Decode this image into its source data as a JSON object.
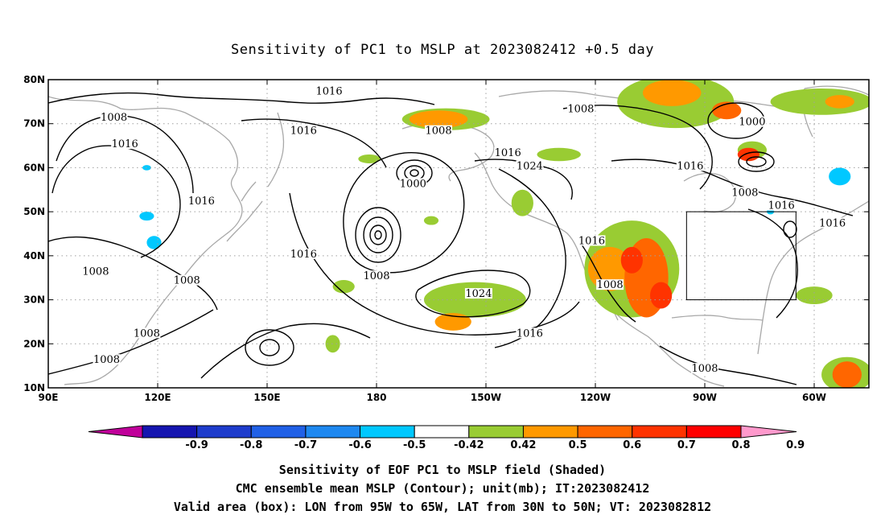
{
  "title": "Sensitivity of PC1 to MSLP at 2023082412 +0.5 day",
  "lon_ticks": [
    "90E",
    "120E",
    "150E",
    "180",
    "150W",
    "120W",
    "90W",
    "60W"
  ],
  "lat_ticks": [
    "80N",
    "70N",
    "60N",
    "50N",
    "40N",
    "30N",
    "20N",
    "10N"
  ],
  "map_extent": {
    "lon_min": 90,
    "lon_max": 315,
    "lat_min": 10,
    "lat_max": 80
  },
  "colorbar": {
    "labels": [
      "-0.9",
      "-0.8",
      "-0.7",
      "-0.6",
      "-0.5",
      "-0.42",
      "0.42",
      "0.5",
      "0.6",
      "0.7",
      "0.8",
      "0.9"
    ],
    "colors": [
      "#c0009a",
      "#1515b0",
      "#1e3ccc",
      "#2060e6",
      "#1e88f0",
      "#00c8ff",
      "#ffffff",
      "#99cc33",
      "#ff9900",
      "#ff6600",
      "#ff3300",
      "#ff0000",
      "#ff99cc"
    ]
  },
  "contour_labels": [
    {
      "text": "1016",
      "lon": 167,
      "lat": 77
    },
    {
      "text": "1008",
      "lon": 108,
      "lat": 71
    },
    {
      "text": "1016",
      "lon": 111,
      "lat": 65
    },
    {
      "text": "1016",
      "lon": 160,
      "lat": 68
    },
    {
      "text": "1008",
      "lon": 197,
      "lat": 68
    },
    {
      "text": "1016",
      "lon": 216,
      "lat": 63
    },
    {
      "text": "1024",
      "lon": 222,
      "lat": 60
    },
    {
      "text": "1000",
      "lon": 190,
      "lat": 56
    },
    {
      "text": "1016",
      "lon": 132,
      "lat": 52
    },
    {
      "text": "1016",
      "lon": 160,
      "lat": 40
    },
    {
      "text": "1008",
      "lon": 180,
      "lat": 35
    },
    {
      "text": "1008",
      "lon": 103,
      "lat": 36
    },
    {
      "text": "1008",
      "lon": 128,
      "lat": 34
    },
    {
      "text": "1024",
      "lon": 208,
      "lat": 31
    },
    {
      "text": "1016",
      "lon": 222,
      "lat": 22
    },
    {
      "text": "1008",
      "lon": 117,
      "lat": 22
    },
    {
      "text": "1008",
      "lon": 106,
      "lat": 16
    },
    {
      "text": "1008",
      "lon": 236,
      "lat": 73
    },
    {
      "text": "1000",
      "lon": 283,
      "lat": 70
    },
    {
      "text": "1016",
      "lon": 266,
      "lat": 60
    },
    {
      "text": "1008",
      "lon": 281,
      "lat": 54
    },
    {
      "text": "1016",
      "lon": 291,
      "lat": 51
    },
    {
      "text": "1016",
      "lon": 305,
      "lat": 47
    },
    {
      "text": "1016",
      "lon": 239,
      "lat": 43
    },
    {
      "text": "1008",
      "lon": 244,
      "lat": 33
    },
    {
      "text": "1008",
      "lon": 270,
      "lat": 14
    }
  ],
  "lows": [
    {
      "lon": 180,
      "lat": 44
    },
    {
      "lon": 190,
      "lat": 58
    },
    {
      "lon": 285,
      "lat": 61
    },
    {
      "lon": 282,
      "lat": 68
    }
  ],
  "positive_sensitivity_patches": [
    {
      "lon": 244,
      "lat": 37,
      "rx": 6,
      "ry": 5,
      "level": "0.6"
    },
    {
      "lon": 254,
      "lat": 35,
      "rx": 6,
      "ry": 9,
      "level": "0.7"
    },
    {
      "lon": 250,
      "lat": 39,
      "rx": 3,
      "ry": 3,
      "level": "0.8"
    },
    {
      "lon": 258,
      "lat": 31,
      "rx": 3,
      "ry": 3,
      "level": "0.8"
    },
    {
      "lon": 207,
      "lat": 29,
      "rx": 10,
      "ry": 3,
      "level": "0.5"
    },
    {
      "lon": 201,
      "lat": 25,
      "rx": 5,
      "ry": 2,
      "level": "0.6"
    },
    {
      "lon": 261,
      "lat": 77,
      "rx": 8,
      "ry": 3,
      "level": "0.6"
    },
    {
      "lon": 276,
      "lat": 73,
      "rx": 4,
      "ry": 2,
      "level": "0.7"
    },
    {
      "lon": 282,
      "lat": 63,
      "rx": 3,
      "ry": 1.5,
      "level": "0.8"
    },
    {
      "lon": 197,
      "lat": 71,
      "rx": 8,
      "ry": 2,
      "level": "0.6"
    },
    {
      "lon": 307,
      "lat": 75,
      "rx": 4,
      "ry": 1.5,
      "level": "0.6"
    },
    {
      "lon": 309,
      "lat": 13,
      "rx": 4,
      "ry": 3,
      "level": "0.7"
    },
    {
      "lon": 300,
      "lat": 31,
      "rx": 3,
      "ry": 1.5,
      "level": "0.5"
    }
  ],
  "green_patches": [
    {
      "lon": 250,
      "lat": 37,
      "rx": 13,
      "ry": 11
    },
    {
      "lon": 207,
      "lat": 30,
      "rx": 14,
      "ry": 4
    },
    {
      "lon": 199,
      "lat": 71,
      "rx": 12,
      "ry": 2.5
    },
    {
      "lon": 262,
      "lat": 75,
      "rx": 16,
      "ry": 6
    },
    {
      "lon": 302,
      "lat": 75,
      "rx": 14,
      "ry": 3
    },
    {
      "lon": 283,
      "lat": 64,
      "rx": 4,
      "ry": 2
    },
    {
      "lon": 230,
      "lat": 63,
      "rx": 6,
      "ry": 1.5
    },
    {
      "lon": 220,
      "lat": 52,
      "rx": 3,
      "ry": 3
    },
    {
      "lon": 171,
      "lat": 33,
      "rx": 3,
      "ry": 1.5
    },
    {
      "lon": 309,
      "lat": 13,
      "rx": 7,
      "ry": 4
    },
    {
      "lon": 300,
      "lat": 31,
      "rx": 5,
      "ry": 2
    },
    {
      "lon": 178,
      "lat": 62,
      "rx": 3,
      "ry": 1
    },
    {
      "lon": 168,
      "lat": 20,
      "rx": 2,
      "ry": 2
    },
    {
      "lon": 195,
      "lat": 48,
      "rx": 2,
      "ry": 1
    }
  ],
  "negative_sensitivity_patches": [
    {
      "lon": 117,
      "lat": 49,
      "rx": 2,
      "ry": 1,
      "level": "-0.42"
    },
    {
      "lon": 119,
      "lat": 43,
      "rx": 2,
      "ry": 1.5,
      "level": "-0.42"
    },
    {
      "lon": 117,
      "lat": 60,
      "rx": 1.2,
      "ry": 0.6,
      "level": "-0.42"
    },
    {
      "lon": 288,
      "lat": 50,
      "rx": 1,
      "ry": 0.6,
      "level": "-0.42"
    },
    {
      "lon": 307,
      "lat": 58,
      "rx": 3,
      "ry": 2,
      "level": "-0.42"
    }
  ],
  "valid_area": {
    "lon_min": 265,
    "lon_max": 295,
    "lat_min": 30,
    "lat_max": 50
  },
  "captions": [
    "Sensitivity of EOF PC1 to MSLP field (Shaded)",
    "CMC ensemble mean MSLP (Contour); unit(mb); IT:2023082412",
    "Valid area (box): LON from 95W to 65W, LAT from 30N to 50N; VT: 2023082812"
  ]
}
